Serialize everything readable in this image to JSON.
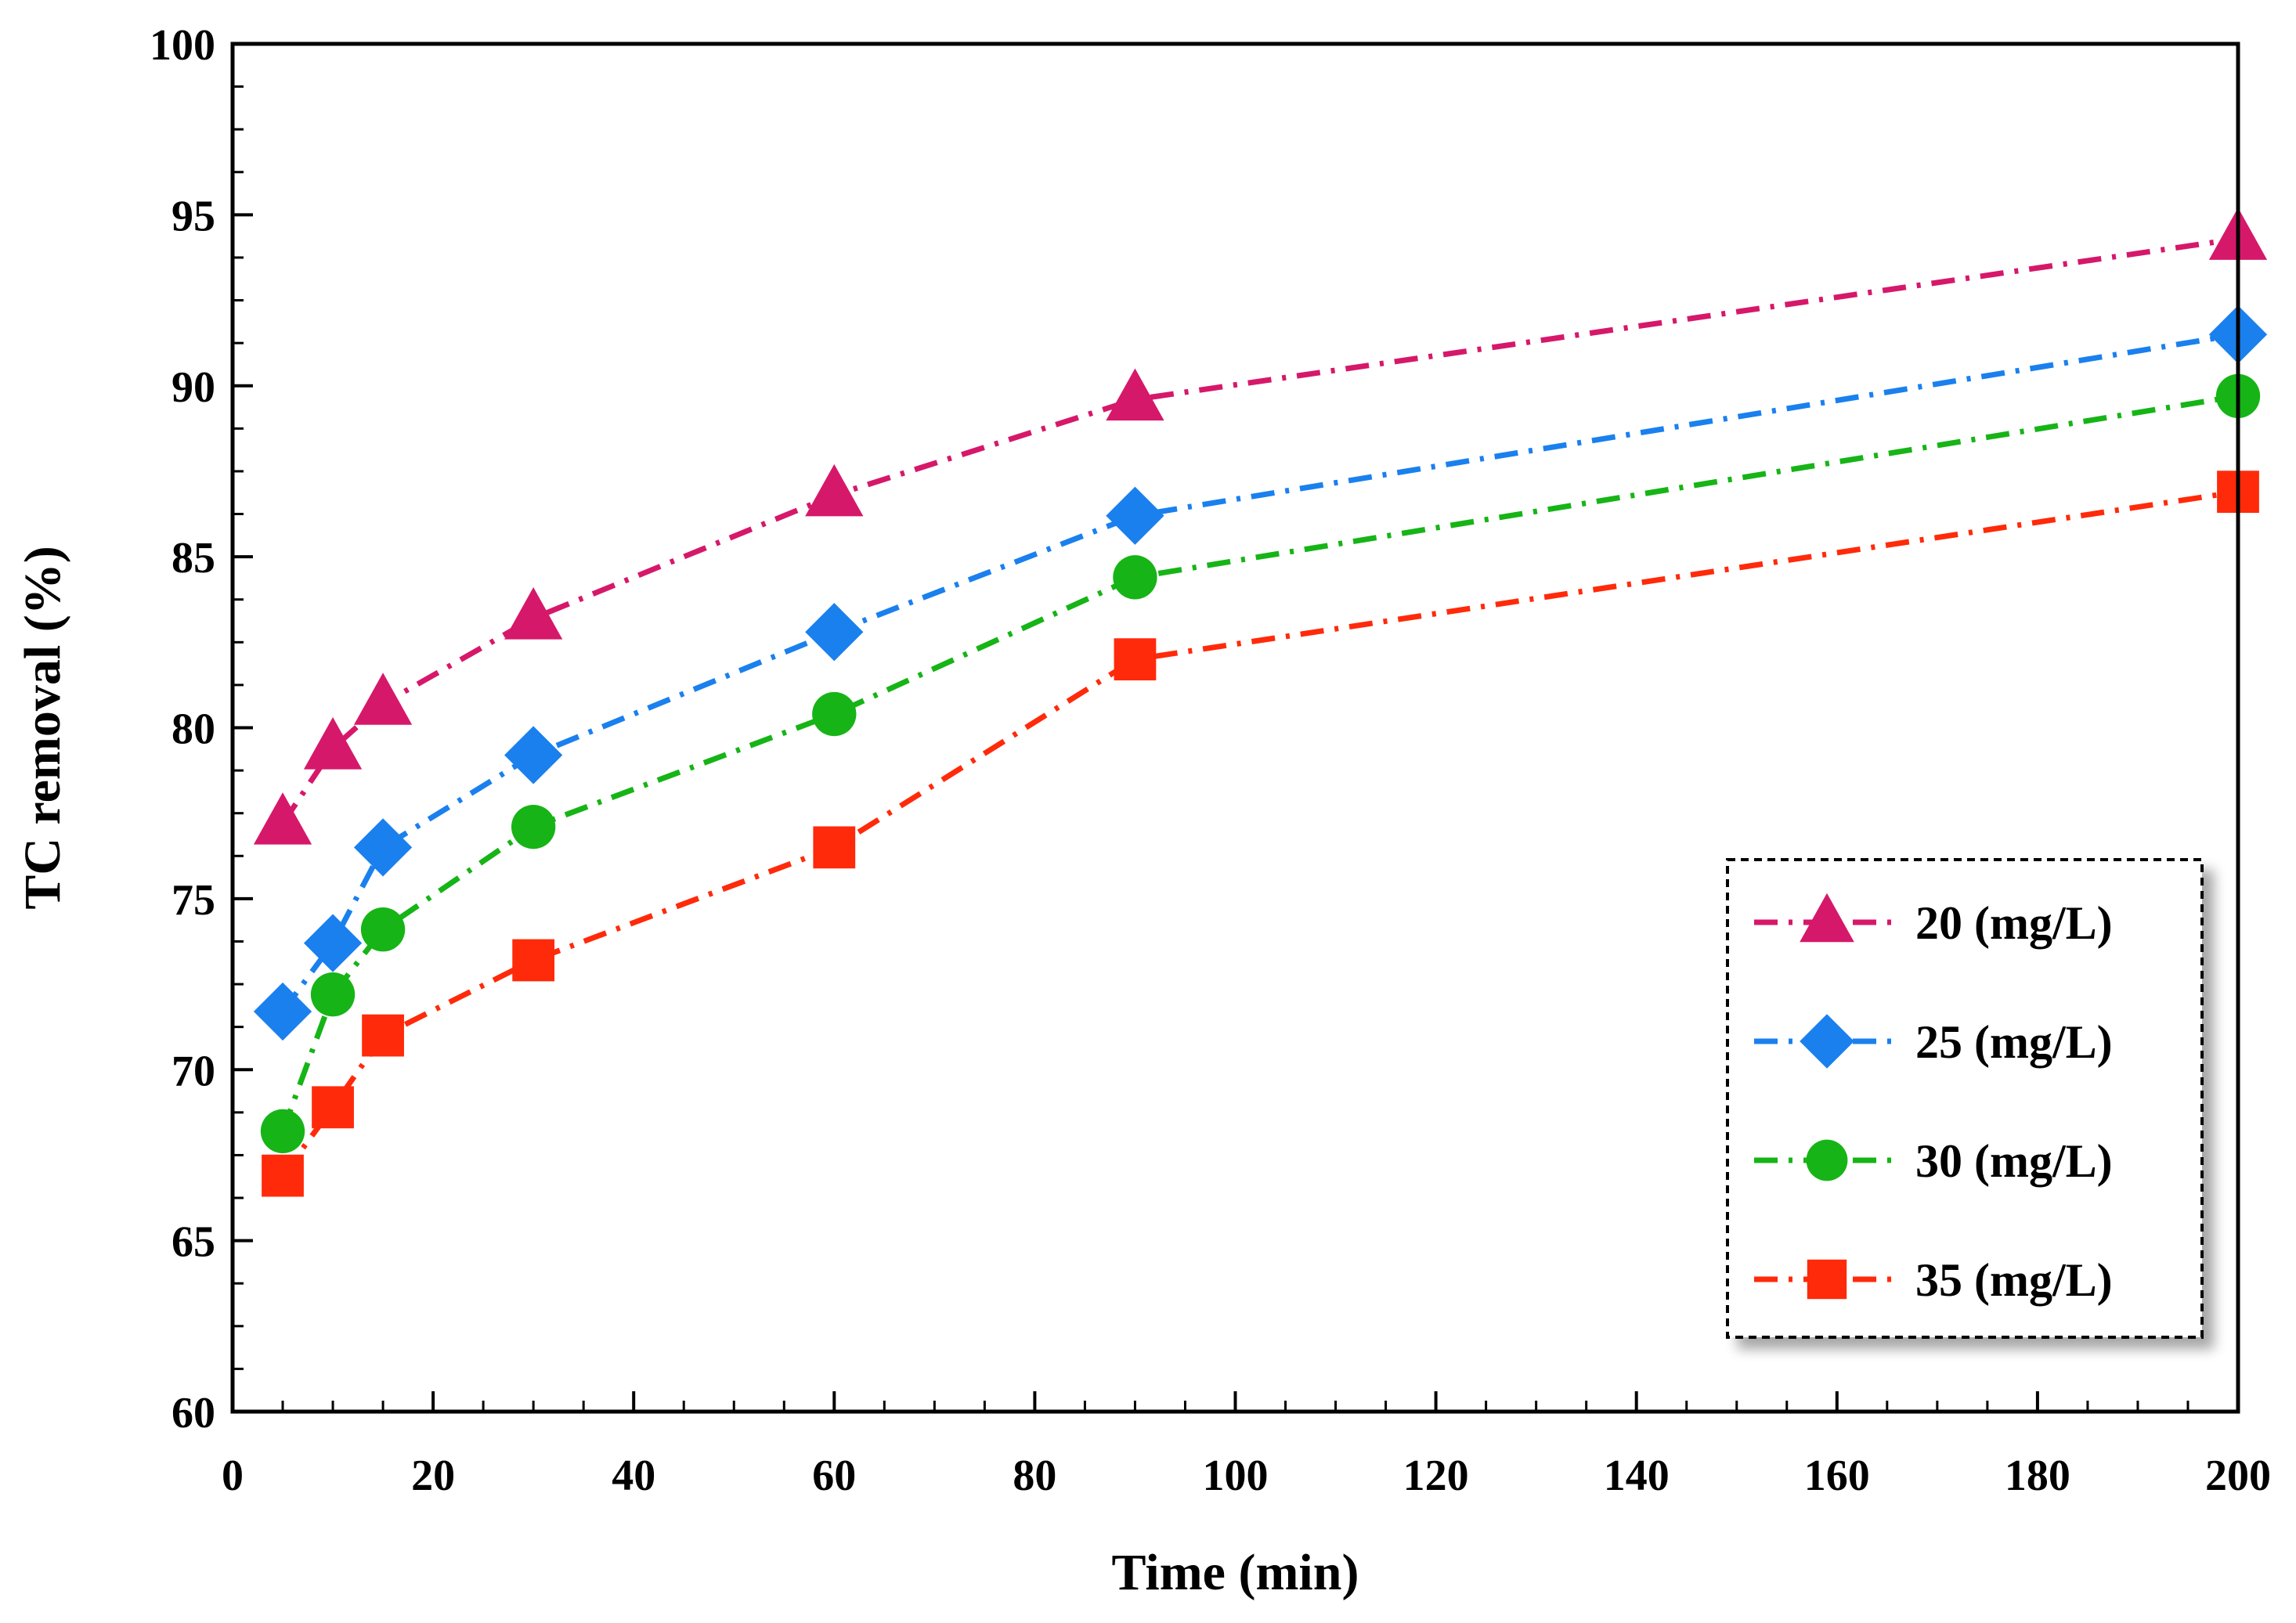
{
  "chart_data": {
    "type": "line",
    "title": "",
    "xlabel": "Time (min)",
    "ylabel": "TC removal (%)",
    "xlim": [
      0,
      200
    ],
    "ylim": [
      60,
      100
    ],
    "xticks": [
      0,
      20,
      40,
      60,
      80,
      100,
      120,
      140,
      160,
      180,
      200
    ],
    "yticks": [
      60,
      65,
      70,
      75,
      80,
      85,
      90,
      95,
      100
    ],
    "x": [
      5,
      10,
      15,
      30,
      60,
      90,
      200
    ],
    "legend_position": "bottom-right",
    "series": [
      {
        "name": "20 (mg/L)",
        "marker": "triangle",
        "color": "#D6186A",
        "values": [
          77.2,
          79.4,
          80.7,
          83.2,
          86.8,
          89.6,
          94.3
        ]
      },
      {
        "name": "25 (mg/L)",
        "marker": "diamond",
        "color": "#1A80EE",
        "values": [
          71.7,
          73.7,
          76.5,
          79.2,
          82.8,
          86.2,
          91.5
        ]
      },
      {
        "name": "30 (mg/L)",
        "marker": "circle",
        "color": "#16B416",
        "values": [
          68.2,
          72.2,
          74.1,
          77.1,
          80.4,
          84.4,
          89.7
        ]
      },
      {
        "name": "35 (mg/L)",
        "marker": "square",
        "color": "#FF2A0A",
        "values": [
          66.9,
          68.9,
          71.0,
          73.2,
          76.5,
          82.0,
          86.9
        ]
      }
    ]
  }
}
